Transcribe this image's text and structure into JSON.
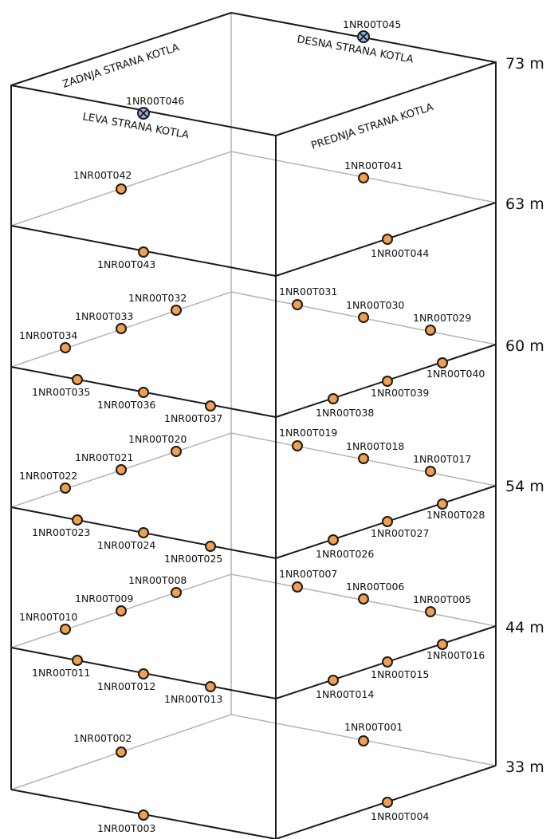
{
  "side_labels": {
    "zadnja": "ZADNJA STRANA KOTLA",
    "desna": "DESNA STRANA KOTLA",
    "leva": "LEVA STRANA KOTLA",
    "prednja": "PREDNJA STRANA KOTLA"
  },
  "levels": [
    "73 m",
    "63 m",
    "60 m",
    "54 m",
    "44 m",
    "33 m"
  ],
  "sensor_labels": {
    "t045": "1NR00T045",
    "t046": "1NR00T046",
    "t041": "1NR00T041",
    "t042": "1NR00T042",
    "t043": "1NR00T043",
    "t044": "1NR00T044",
    "t029": "1NR00T029",
    "t030": "1NR00T030",
    "t031": "1NR00T031",
    "t032": "1NR00T032",
    "t033": "1NR00T033",
    "t034": "1NR00T034",
    "t035": "1NR00T035",
    "t036": "1NR00T036",
    "t037": "1NR00T037",
    "t038": "1NR00T038",
    "t039": "1NR00T039",
    "t040": "1NR00T040",
    "t017": "1NR00T017",
    "t018": "1NR00T018",
    "t019": "1NR00T019",
    "t020": "1NR00T020",
    "t021": "1NR00T021",
    "t022": "1NR00T022",
    "t023": "1NR00T023",
    "t024": "1NR00T024",
    "t025": "1NR00T025",
    "t026": "1NR00T026",
    "t027": "1NR00T027",
    "t028": "1NR00T028",
    "t005": "1NR00T005",
    "t006": "1NR00T006",
    "t007": "1NR00T007",
    "t008": "1NR00T008",
    "t009": "1NR00T009",
    "t010": "1NR00T010",
    "t011": "1NR00T011",
    "t012": "1NR00T012",
    "t013": "1NR00T013",
    "t014": "1NR00T014",
    "t015": "1NR00T015",
    "t016": "1NR00T016",
    "t001": "1NR00T001",
    "t002": "1NR00T002",
    "t003": "1NR00T003",
    "t004": "1NR00T004"
  },
  "colors": {
    "sensor_fill": "#f0a050",
    "special_fill": "#8fb3e6",
    "front_line": "#1a1a1a",
    "back_line": "#b4b4b4"
  }
}
